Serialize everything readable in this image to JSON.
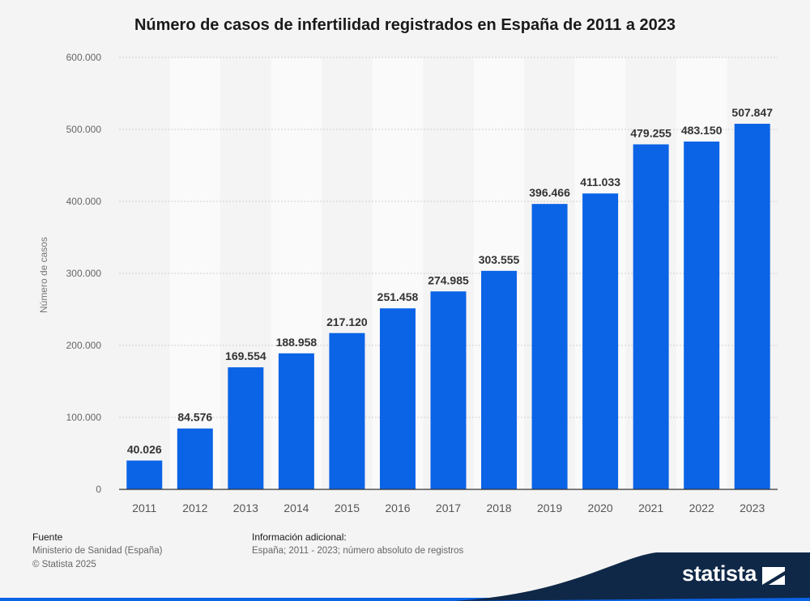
{
  "title": "Número de casos de infertilidad registrados en España de 2011 a 2023",
  "chart_data": {
    "type": "bar",
    "categories": [
      "2011",
      "2012",
      "2013",
      "2014",
      "2015",
      "2016",
      "2017",
      "2018",
      "2019",
      "2020",
      "2021",
      "2022",
      "2023"
    ],
    "values": [
      40026,
      84576,
      169554,
      188958,
      217120,
      251458,
      274985,
      303555,
      396466,
      411033,
      479255,
      483150,
      507847
    ],
    "value_labels": [
      "40.026",
      "84.576",
      "169.554",
      "188.958",
      "217.120",
      "251.458",
      "274.985",
      "303.555",
      "396.466",
      "411.033",
      "479.255",
      "483.150",
      "507.847"
    ],
    "ylabel": "Número de casos",
    "xlabel": "",
    "ylim": [
      0,
      600000
    ],
    "yticks": [
      0,
      100000,
      200000,
      300000,
      400000,
      500000,
      600000
    ],
    "ytick_labels": [
      "0",
      "100.000",
      "200.000",
      "300.000",
      "400.000",
      "500.000",
      "600.000"
    ],
    "grid": true,
    "bar_color": "#0b63e6"
  },
  "footer": {
    "source_heading": "Fuente",
    "source_text": "Ministerio de Sanidad (España)",
    "copyright": "© Statista 2025",
    "info_heading": "Información adicional:",
    "info_text": "España; 2011 - 2023; número absoluto de registros"
  },
  "brand": {
    "name": "statista",
    "icon": "statista-logo-icon",
    "colors": {
      "dark": "#0f2847",
      "accent": "#0b63e6"
    }
  }
}
